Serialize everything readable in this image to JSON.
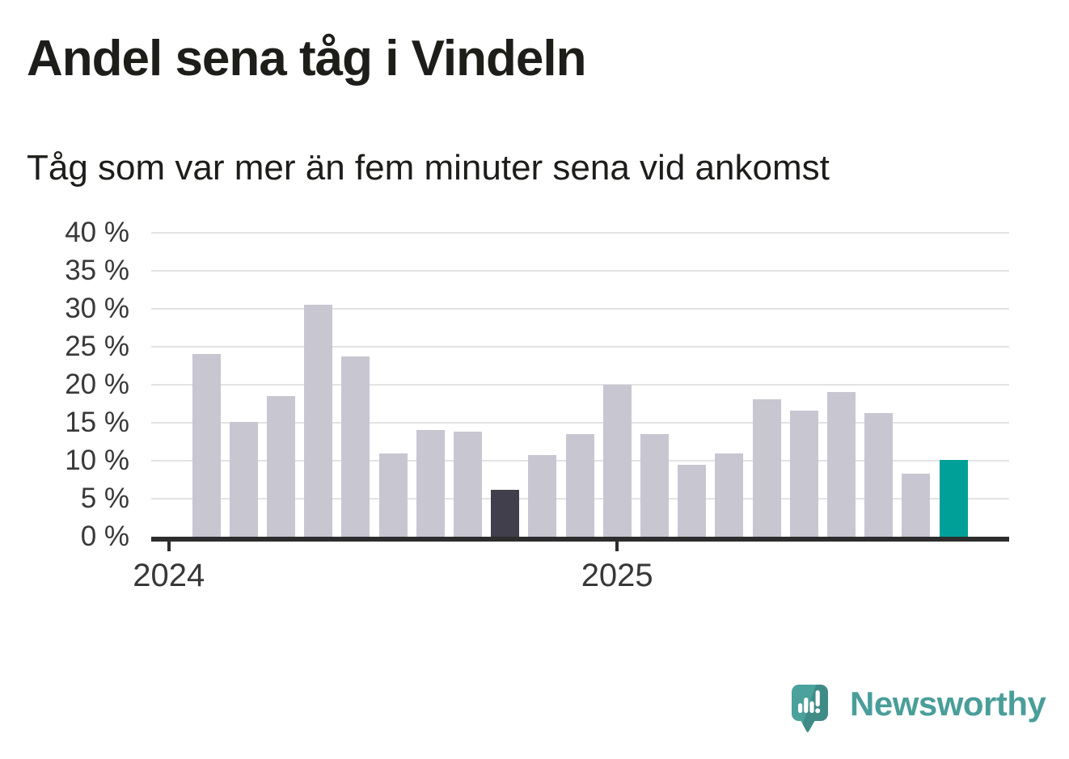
{
  "header": {
    "title": "Andel sena tåg i Vindeln",
    "subtitle": "Tåg som var mer än fem minuter sena vid ankomst"
  },
  "chart_data": {
    "type": "bar",
    "title": "Andel sena tåg i Vindeln",
    "subtitle": "Tåg som var mer än fem minuter sena vid ankomst",
    "unit": "%",
    "ylim": [
      0,
      40
    ],
    "grid": true,
    "legend": "none",
    "y_ticks": [
      {
        "value": 0,
        "label": "0 %"
      },
      {
        "value": 5,
        "label": "5 %"
      },
      {
        "value": 10,
        "label": "10 %"
      },
      {
        "value": 15,
        "label": "15 %"
      },
      {
        "value": 20,
        "label": "20 %"
      },
      {
        "value": 25,
        "label": "25 %"
      },
      {
        "value": 30,
        "label": "30 %"
      },
      {
        "value": 35,
        "label": "35 %"
      },
      {
        "value": 40,
        "label": "40 %"
      }
    ],
    "x_ticks": [
      {
        "label": "2024",
        "slot": -1
      },
      {
        "label": "2025",
        "slot": 11
      }
    ],
    "bars": [
      {
        "month": "2024-02",
        "value": 24.0,
        "style": "default"
      },
      {
        "month": "2024-03",
        "value": 15.1,
        "style": "default"
      },
      {
        "month": "2024-04",
        "value": 18.5,
        "style": "default"
      },
      {
        "month": "2024-05",
        "value": 30.5,
        "style": "default"
      },
      {
        "month": "2024-06",
        "value": 23.7,
        "style": "default"
      },
      {
        "month": "2024-07",
        "value": 11.0,
        "style": "default"
      },
      {
        "month": "2024-08",
        "value": 14.0,
        "style": "default"
      },
      {
        "month": "2024-09",
        "value": 13.8,
        "style": "default"
      },
      {
        "month": "2024-10",
        "value": 6.2,
        "style": "dark"
      },
      {
        "month": "2024-11",
        "value": 10.7,
        "style": "default"
      },
      {
        "month": "2024-12",
        "value": 13.5,
        "style": "default"
      },
      {
        "month": "2025-01",
        "value": 20.0,
        "style": "default"
      },
      {
        "month": "2025-02",
        "value": 13.5,
        "style": "default"
      },
      {
        "month": "2025-03",
        "value": 9.5,
        "style": "default"
      },
      {
        "month": "2025-04",
        "value": 11.0,
        "style": "default"
      },
      {
        "month": "2025-05",
        "value": 18.1,
        "style": "default"
      },
      {
        "month": "2025-06",
        "value": 16.6,
        "style": "default"
      },
      {
        "month": "2025-07",
        "value": 19.0,
        "style": "default"
      },
      {
        "month": "2025-08",
        "value": 16.3,
        "style": "default"
      },
      {
        "month": "2025-09",
        "value": 8.3,
        "style": "default"
      },
      {
        "month": "2025-10",
        "value": 10.1,
        "style": "teal"
      }
    ],
    "colors": {
      "default": "#c8c6d0",
      "dark": "#423f4c",
      "teal": "#00a098",
      "gridline": "#e3e3e3",
      "axis": "#2d2d2d",
      "axis_text": "#383838",
      "title_text": "#1d1d1a"
    }
  },
  "branding": {
    "wordmark": "Newsworthy",
    "logo_icon": "speech-bubble-with-bar-chart-and-exclamation",
    "bubble_color": "#4ba19b",
    "bubble_shade_color": "#3f8c87",
    "icon_glyph_color": "#ffffff",
    "wordmark_color": "#4a9e99"
  }
}
